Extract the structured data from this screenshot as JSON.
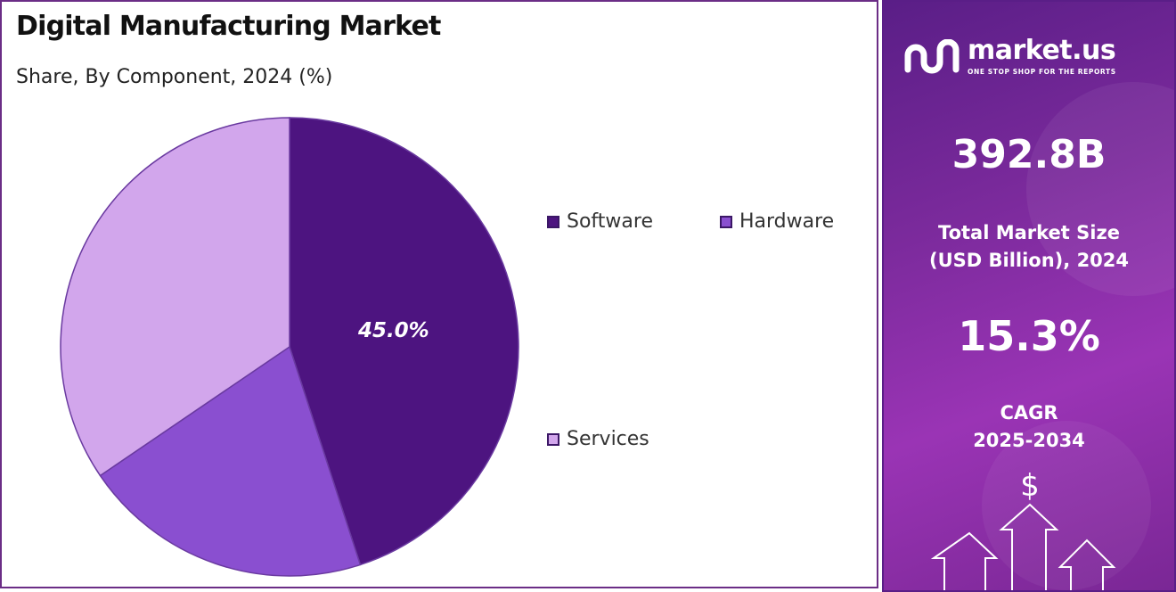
{
  "title": "Digital Manufacturing Market",
  "subtitle": "Share, By Component, 2024 (%)",
  "chart_data": {
    "type": "pie",
    "title": "Digital Manufacturing Market",
    "subtitle": "Share, By Component, 2024 (%)",
    "labels": [
      "Software",
      "Hardware",
      "Services"
    ],
    "values": [
      45.0,
      20.5,
      34.5
    ],
    "colors": [
      "#4d1480",
      "#8a4fd0",
      "#d2a6ec"
    ],
    "data_labels": [
      "45.0%",
      "",
      ""
    ],
    "legend_placement": "right"
  },
  "legend": {
    "software": "Software",
    "hardware": "Hardware",
    "services": "Services"
  },
  "info_panel": {
    "brand_name": "market.us",
    "brand_tagline": "ONE STOP SHOP FOR THE REPORTS",
    "market_size_value": "392.8B",
    "market_size_label_line1": "Total Market Size",
    "market_size_label_line2": "(USD Billion), 2024",
    "cagr_value": "15.3%",
    "cagr_label_line1": "CAGR",
    "cagr_label_line2": "2025-2034",
    "currency_symbol": "$",
    "icons": [
      "market-us-logo-icon",
      "dollar-icon",
      "up-arrow-icon"
    ],
    "accent_color": "#7b2a9c"
  }
}
